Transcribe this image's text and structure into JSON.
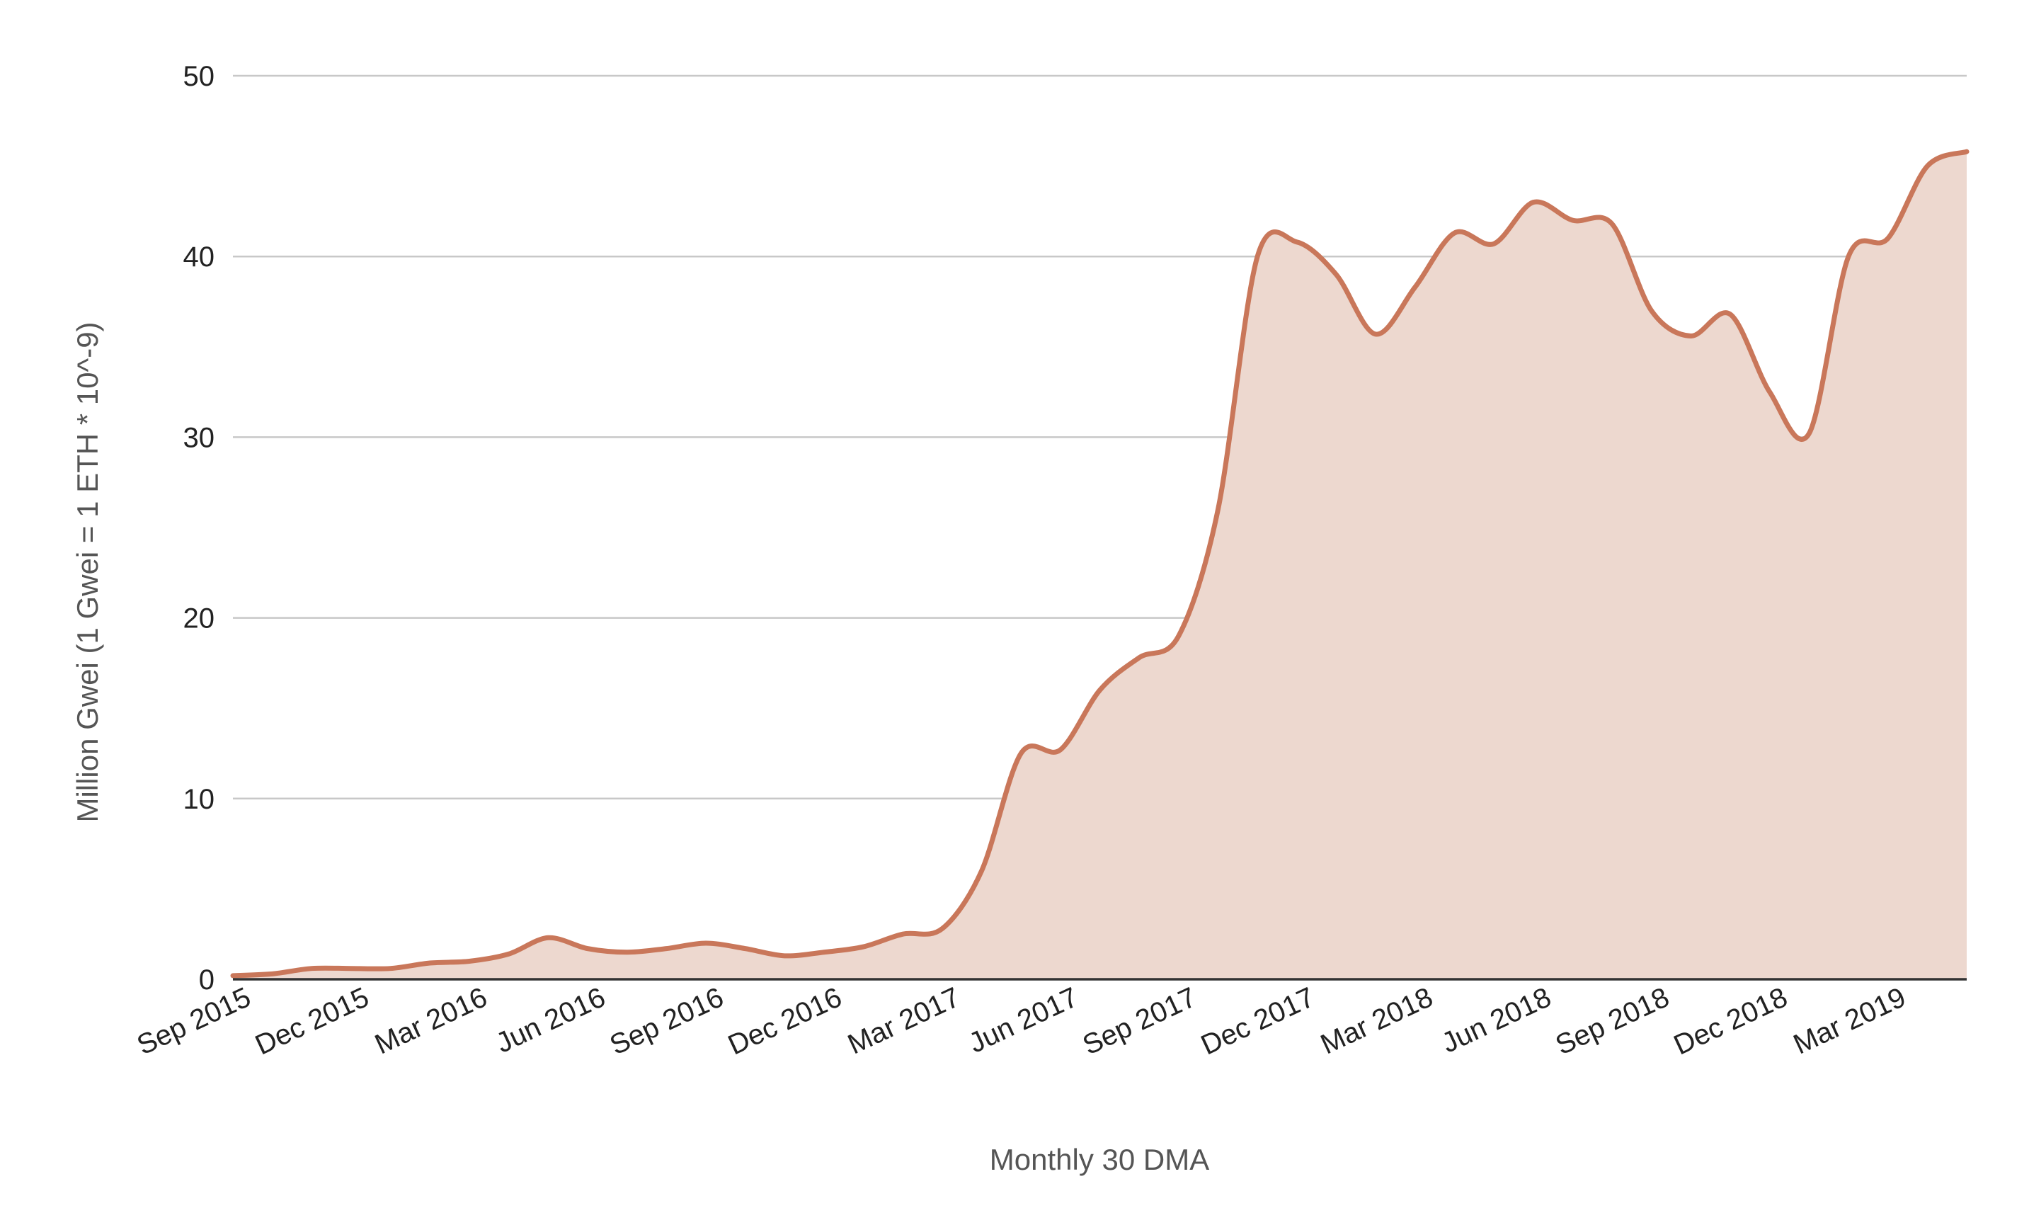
{
  "chart_data": {
    "type": "area",
    "xlabel": "Monthly 30 DMA",
    "ylabel": "Million Gwei (1 Gwei = 1 ETH * 10^-9)",
    "ylim": [
      0,
      50
    ],
    "yticks": [
      0,
      10,
      20,
      30,
      40,
      50
    ],
    "xtick_labels": [
      "Sep 2015",
      "Dec 2015",
      "Mar 2016",
      "Jun 2016",
      "Sep 2016",
      "Dec 2016",
      "Mar 2017",
      "Jun 2017",
      "Sep 2017",
      "Dec 2017",
      "Mar 2018",
      "Jun 2018",
      "Sep 2018",
      "Dec 2018",
      "Mar 2019"
    ],
    "grid": true,
    "colors": {
      "line": "#c9775a",
      "fill": "#edd8cf",
      "grid": "#c8c8c8",
      "baseline": "#333333"
    },
    "x": [
      "Sep 2015",
      "Oct 2015",
      "Nov 2015",
      "Dec 2015",
      "Jan 2016",
      "Feb 2016",
      "Mar 2016",
      "Apr 2016",
      "May 2016",
      "Jun 2016",
      "Jul 2016",
      "Aug 2016",
      "Sep 2016",
      "Oct 2016",
      "Nov 2016",
      "Dec 2016",
      "Jan 2017",
      "Feb 2017",
      "Mar 2017",
      "Apr 2017",
      "May 2017",
      "Jun 2017",
      "Jul 2017",
      "Aug 2017",
      "Sep 2017",
      "Oct 2017",
      "Nov 2017",
      "Dec 2017",
      "Jan 2018",
      "Feb 2018",
      "Mar 2018",
      "Apr 2018",
      "May 2018",
      "Jun 2018",
      "Jul 2018",
      "Aug 2018",
      "Sep 2018",
      "Oct 2018",
      "Nov 2018",
      "Dec 2018",
      "Jan 2019",
      "Feb 2019",
      "Mar 2019",
      "Apr 2019",
      "May 2019"
    ],
    "series": [
      {
        "values": [
          0.2,
          0.3,
          0.6,
          0.6,
          0.6,
          0.9,
          1.0,
          1.4,
          2.3,
          1.7,
          1.5,
          1.7,
          2.0,
          1.7,
          1.3,
          1.5,
          1.8,
          2.5,
          2.8,
          6.0,
          12.5,
          12.7,
          16.0,
          17.8,
          19.0,
          26.0,
          40.0,
          40.8,
          39.0,
          35.7,
          38.3,
          41.3,
          40.7,
          43.0,
          42.0,
          41.8,
          37.0,
          35.6,
          36.8,
          32.5,
          30.2,
          40.0,
          41.0,
          45.0,
          45.8
        ]
      }
    ]
  }
}
